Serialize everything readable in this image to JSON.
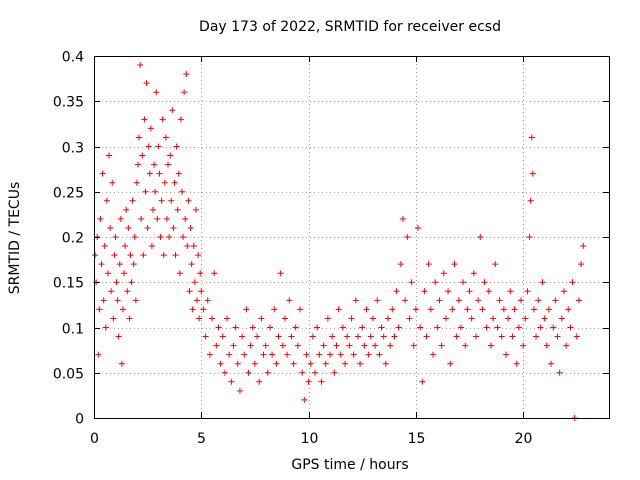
{
  "chart_data": {
    "type": "scatter",
    "title": "Day 173 of 2022, SRMTID for receiver ecsd",
    "xlabel": "GPS time / hours",
    "ylabel": "SRMTID / TECUs",
    "xlim": [
      0,
      24
    ],
    "ylim": [
      0,
      0.4
    ],
    "xticks": [
      0,
      5,
      10,
      15,
      20
    ],
    "xtick_labels": [
      "0",
      "5",
      "10",
      "15",
      "20"
    ],
    "yticks": [
      0,
      0.05,
      0.1,
      0.15,
      0.2,
      0.25,
      0.3,
      0.35,
      0.4
    ],
    "ytick_labels": [
      "0",
      "0.05",
      "0.1",
      "0.15",
      "0.2",
      "0.25",
      "0.3",
      "0.35",
      "0.4"
    ],
    "grid": true,
    "marker": "plus",
    "series": [
      {
        "name": "SRMTID",
        "color": "#ff0000",
        "points": [
          [
            0.05,
            0.18
          ],
          [
            0.1,
            0.15
          ],
          [
            0.15,
            0.2
          ],
          [
            0.2,
            0.07
          ],
          [
            0.25,
            0.12
          ],
          [
            0.3,
            0.22
          ],
          [
            0.35,
            0.17
          ],
          [
            0.4,
            0.27
          ],
          [
            0.45,
            0.13
          ],
          [
            0.5,
            0.19
          ],
          [
            0.55,
            0.1
          ],
          [
            0.6,
            0.24
          ],
          [
            0.65,
            0.16
          ],
          [
            0.7,
            0.29
          ],
          [
            0.75,
            0.21
          ],
          [
            0.8,
            0.14
          ],
          [
            0.85,
            0.26
          ],
          [
            0.9,
            0.11
          ],
          [
            0.95,
            0.18
          ],
          [
            1.0,
            0.2
          ],
          [
            1.05,
            0.15
          ],
          [
            1.1,
            0.13
          ],
          [
            1.15,
            0.09
          ],
          [
            1.2,
            0.17
          ],
          [
            1.25,
            0.22
          ],
          [
            1.3,
            0.06
          ],
          [
            1.35,
            0.12
          ],
          [
            1.4,
            0.16
          ],
          [
            1.45,
            0.19
          ],
          [
            1.5,
            0.23
          ],
          [
            1.55,
            0.14
          ],
          [
            1.6,
            0.21
          ],
          [
            1.65,
            0.11
          ],
          [
            1.7,
            0.18
          ],
          [
            1.75,
            0.15
          ],
          [
            1.8,
            0.24
          ],
          [
            1.85,
            0.17
          ],
          [
            1.9,
            0.2
          ],
          [
            1.95,
            0.13
          ],
          [
            2.0,
            0.26
          ],
          [
            2.05,
            0.28
          ],
          [
            2.1,
            0.31
          ],
          [
            2.15,
            0.39
          ],
          [
            2.2,
            0.22
          ],
          [
            2.25,
            0.29
          ],
          [
            2.3,
            0.18
          ],
          [
            2.35,
            0.33
          ],
          [
            2.4,
            0.25
          ],
          [
            2.45,
            0.37
          ],
          [
            2.5,
            0.21
          ],
          [
            2.55,
            0.3
          ],
          [
            2.6,
            0.27
          ],
          [
            2.65,
            0.32
          ],
          [
            2.7,
            0.19
          ],
          [
            2.75,
            0.23
          ],
          [
            2.8,
            0.28
          ],
          [
            2.85,
            0.25
          ],
          [
            2.9,
            0.36
          ],
          [
            2.95,
            0.22
          ],
          [
            3.0,
            0.3
          ],
          [
            3.05,
            0.27
          ],
          [
            3.1,
            0.2
          ],
          [
            3.15,
            0.24
          ],
          [
            3.2,
            0.33
          ],
          [
            3.25,
            0.18
          ],
          [
            3.3,
            0.26
          ],
          [
            3.35,
            0.31
          ],
          [
            3.4,
            0.22
          ],
          [
            3.45,
            0.28
          ],
          [
            3.5,
            0.2
          ],
          [
            3.55,
            0.29
          ],
          [
            3.6,
            0.24
          ],
          [
            3.65,
            0.34
          ],
          [
            3.7,
            0.21
          ],
          [
            3.75,
            0.26
          ],
          [
            3.8,
            0.18
          ],
          [
            3.85,
            0.3
          ],
          [
            3.9,
            0.23
          ],
          [
            3.95,
            0.27
          ],
          [
            4.0,
            0.16
          ],
          [
            4.05,
            0.33
          ],
          [
            4.1,
            0.25
          ],
          [
            4.15,
            0.2
          ],
          [
            4.2,
            0.36
          ],
          [
            4.25,
            0.22
          ],
          [
            4.3,
            0.38
          ],
          [
            4.35,
            0.19
          ],
          [
            4.4,
            0.24
          ],
          [
            4.45,
            0.14
          ],
          [
            4.5,
            0.21
          ],
          [
            4.55,
            0.17
          ],
          [
            4.6,
            0.12
          ],
          [
            4.65,
            0.19
          ],
          [
            4.7,
            0.15
          ],
          [
            4.75,
            0.23
          ],
          [
            4.8,
            0.13
          ],
          [
            4.85,
            0.18
          ],
          [
            4.9,
            0.11
          ],
          [
            4.95,
            0.16
          ],
          [
            5.0,
            0.14
          ],
          [
            5.1,
            0.12
          ],
          [
            5.2,
            0.09
          ],
          [
            5.3,
            0.13
          ],
          [
            5.4,
            0.07
          ],
          [
            5.5,
            0.11
          ],
          [
            5.6,
            0.16
          ],
          [
            5.7,
            0.08
          ],
          [
            5.8,
            0.1
          ],
          [
            5.9,
            0.06
          ],
          [
            6.0,
            0.09
          ],
          [
            6.1,
            0.05
          ],
          [
            6.2,
            0.11
          ],
          [
            6.3,
            0.07
          ],
          [
            6.4,
            0.04
          ],
          [
            6.5,
            0.08
          ],
          [
            6.6,
            0.1
          ],
          [
            6.7,
            0.06
          ],
          [
            6.8,
            0.03
          ],
          [
            6.9,
            0.09
          ],
          [
            7.0,
            0.07
          ],
          [
            7.1,
            0.12
          ],
          [
            7.2,
            0.05
          ],
          [
            7.3,
            0.08
          ],
          [
            7.4,
            0.1
          ],
          [
            7.5,
            0.06
          ],
          [
            7.6,
            0.09
          ],
          [
            7.7,
            0.04
          ],
          [
            7.8,
            0.11
          ],
          [
            7.9,
            0.07
          ],
          [
            8.0,
            0.08
          ],
          [
            8.1,
            0.05
          ],
          [
            8.2,
            0.1
          ],
          [
            8.3,
            0.07
          ],
          [
            8.4,
            0.12
          ],
          [
            8.5,
            0.06
          ],
          [
            8.6,
            0.09
          ],
          [
            8.7,
            0.16
          ],
          [
            8.8,
            0.08
          ],
          [
            8.9,
            0.11
          ],
          [
            9.0,
            0.07
          ],
          [
            9.1,
            0.13
          ],
          [
            9.2,
            0.09
          ],
          [
            9.3,
            0.06
          ],
          [
            9.4,
            0.1
          ],
          [
            9.5,
            0.08
          ],
          [
            9.6,
            0.12
          ],
          [
            9.7,
            0.05
          ],
          [
            9.8,
            0.02
          ],
          [
            9.9,
            0.07
          ],
          [
            10.0,
            0.04
          ],
          [
            10.1,
            0.06
          ],
          [
            10.2,
            0.09
          ],
          [
            10.3,
            0.05
          ],
          [
            10.4,
            0.1
          ],
          [
            10.5,
            0.07
          ],
          [
            10.6,
            0.04
          ],
          [
            10.7,
            0.08
          ],
          [
            10.8,
            0.06
          ],
          [
            10.9,
            0.11
          ],
          [
            11.0,
            0.07
          ],
          [
            11.1,
            0.09
          ],
          [
            11.2,
            0.05
          ],
          [
            11.3,
            0.08
          ],
          [
            11.4,
            0.12
          ],
          [
            11.5,
            0.07
          ],
          [
            11.6,
            0.1
          ],
          [
            11.7,
            0.06
          ],
          [
            11.8,
            0.09
          ],
          [
            11.9,
            0.08
          ],
          [
            12.0,
            0.11
          ],
          [
            12.1,
            0.07
          ],
          [
            12.2,
            0.13
          ],
          [
            12.3,
            0.09
          ],
          [
            12.4,
            0.06
          ],
          [
            12.5,
            0.1
          ],
          [
            12.6,
            0.08
          ],
          [
            12.7,
            0.12
          ],
          [
            12.8,
            0.07
          ],
          [
            12.9,
            0.09
          ],
          [
            13.0,
            0.11
          ],
          [
            13.1,
            0.08
          ],
          [
            13.2,
            0.13
          ],
          [
            13.3,
            0.07
          ],
          [
            13.4,
            0.1
          ],
          [
            13.5,
            0.09
          ],
          [
            13.6,
            0.06
          ],
          [
            13.7,
            0.11
          ],
          [
            13.8,
            0.08
          ],
          [
            13.9,
            0.12
          ],
          [
            14.0,
            0.09
          ],
          [
            14.1,
            0.14
          ],
          [
            14.2,
            0.1
          ],
          [
            14.3,
            0.17
          ],
          [
            14.4,
            0.22
          ],
          [
            14.5,
            0.13
          ],
          [
            14.6,
            0.2
          ],
          [
            14.7,
            0.11
          ],
          [
            14.8,
            0.15
          ],
          [
            14.9,
            0.08
          ],
          [
            15.0,
            0.12
          ],
          [
            15.1,
            0.21
          ],
          [
            15.2,
            0.1
          ],
          [
            15.3,
            0.04
          ],
          [
            15.4,
            0.14
          ],
          [
            15.5,
            0.09
          ],
          [
            15.6,
            0.17
          ],
          [
            15.7,
            0.12
          ],
          [
            15.8,
            0.07
          ],
          [
            15.9,
            0.15
          ],
          [
            16.0,
            0.1
          ],
          [
            16.1,
            0.13
          ],
          [
            16.2,
            0.08
          ],
          [
            16.3,
            0.16
          ],
          [
            16.4,
            0.11
          ],
          [
            16.5,
            0.14
          ],
          [
            16.6,
            0.06
          ],
          [
            16.7,
            0.12
          ],
          [
            16.8,
            0.17
          ],
          [
            16.9,
            0.09
          ],
          [
            17.0,
            0.13
          ],
          [
            17.1,
            0.1
          ],
          [
            17.2,
            0.15
          ],
          [
            17.3,
            0.08
          ],
          [
            17.4,
            0.12
          ],
          [
            17.5,
            0.14
          ],
          [
            17.6,
            0.11
          ],
          [
            17.7,
            0.16
          ],
          [
            17.8,
            0.09
          ],
          [
            17.9,
            0.13
          ],
          [
            18.0,
            0.2
          ],
          [
            18.1,
            0.12
          ],
          [
            18.2,
            0.15
          ],
          [
            18.3,
            0.1
          ],
          [
            18.4,
            0.14
          ],
          [
            18.5,
            0.08
          ],
          [
            18.6,
            0.11
          ],
          [
            18.7,
            0.17
          ],
          [
            18.8,
            0.1
          ],
          [
            18.9,
            0.13
          ],
          [
            19.0,
            0.09
          ],
          [
            19.1,
            0.12
          ],
          [
            19.2,
            0.07
          ],
          [
            19.3,
            0.11
          ],
          [
            19.4,
            0.14
          ],
          [
            19.5,
            0.09
          ],
          [
            19.6,
            0.12
          ],
          [
            19.7,
            0.06
          ],
          [
            19.8,
            0.1
          ],
          [
            19.9,
            0.13
          ],
          [
            20.0,
            0.08
          ],
          [
            20.1,
            0.11
          ],
          [
            20.2,
            0.14
          ],
          [
            20.3,
            0.2
          ],
          [
            20.35,
            0.24
          ],
          [
            20.4,
            0.31
          ],
          [
            20.45,
            0.27
          ],
          [
            20.5,
            0.12
          ],
          [
            20.6,
            0.09
          ],
          [
            20.7,
            0.13
          ],
          [
            20.8,
            0.1
          ],
          [
            20.9,
            0.15
          ],
          [
            21.0,
            0.11
          ],
          [
            21.1,
            0.08
          ],
          [
            21.2,
            0.12
          ],
          [
            21.3,
            0.06
          ],
          [
            21.4,
            0.1
          ],
          [
            21.5,
            0.13
          ],
          [
            21.6,
            0.09
          ],
          [
            21.7,
            0.05
          ],
          [
            21.8,
            0.11
          ],
          [
            21.9,
            0.14
          ],
          [
            22.0,
            0.08
          ],
          [
            22.1,
            0.12
          ],
          [
            22.2,
            0.1
          ],
          [
            22.3,
            0.15
          ],
          [
            22.4,
            0.0
          ],
          [
            22.5,
            0.09
          ],
          [
            22.6,
            0.13
          ],
          [
            22.7,
            0.17
          ],
          [
            22.8,
            0.19
          ]
        ]
      }
    ]
  }
}
